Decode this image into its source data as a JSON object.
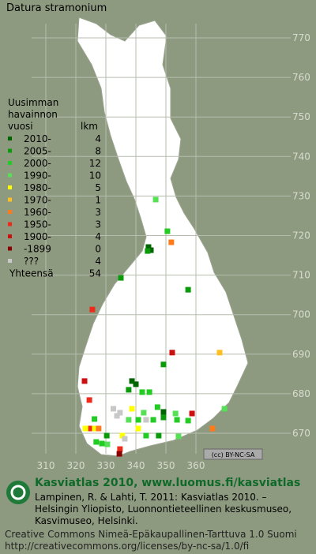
{
  "map": {
    "title": "Datura stramonium",
    "badge": "(cc) BY-NC-SA",
    "xticks": [
      310,
      320,
      330,
      340,
      350,
      360
    ],
    "yticks": [
      670,
      680,
      690,
      700,
      710,
      720,
      730,
      740,
      750,
      760,
      770
    ],
    "points": [
      {
        "x": 346.6,
        "y": 729.1,
        "period": 3
      },
      {
        "x": 350.5,
        "y": 721.1,
        "period": 2
      },
      {
        "x": 351.8,
        "y": 718.3,
        "period": 6
      },
      {
        "x": 344.2,
        "y": 717.1,
        "period": 0
      },
      {
        "x": 345,
        "y": 716.3,
        "period": 0
      },
      {
        "x": 343.9,
        "y": 716.1,
        "period": 1
      },
      {
        "x": 335,
        "y": 709.3,
        "period": 1
      },
      {
        "x": 357.4,
        "y": 706.3,
        "period": 1
      },
      {
        "x": 325.5,
        "y": 701.3,
        "period": 7
      },
      {
        "x": 352.1,
        "y": 690.4,
        "period": 8
      },
      {
        "x": 367.9,
        "y": 690.4,
        "period": 5
      },
      {
        "x": 349.2,
        "y": 687.4,
        "period": 1
      },
      {
        "x": 322.9,
        "y": 683.2,
        "period": 8
      },
      {
        "x": 338.7,
        "y": 683.2,
        "period": 0
      },
      {
        "x": 340,
        "y": 682.4,
        "period": 0
      },
      {
        "x": 337.6,
        "y": 681,
        "period": 1
      },
      {
        "x": 342.1,
        "y": 680.4,
        "period": 2
      },
      {
        "x": 344.5,
        "y": 680.4,
        "period": 2
      },
      {
        "x": 324.5,
        "y": 678.4,
        "period": 7
      },
      {
        "x": 338.7,
        "y": 676.2,
        "period": 4
      },
      {
        "x": 334.7,
        "y": 675.2,
        "period": 10
      },
      {
        "x": 333.7,
        "y": 674.4,
        "period": 10
      },
      {
        "x": 349.2,
        "y": 675.4,
        "period": 0
      },
      {
        "x": 349.2,
        "y": 674,
        "period": 1
      },
      {
        "x": 353.2,
        "y": 675,
        "period": 3
      },
      {
        "x": 358.7,
        "y": 675,
        "period": 8
      },
      {
        "x": 369.5,
        "y": 676.2,
        "period": 3
      },
      {
        "x": 340.8,
        "y": 673.4,
        "period": 2
      },
      {
        "x": 345.8,
        "y": 673.4,
        "period": 2
      },
      {
        "x": 343.4,
        "y": 673.4,
        "period": 10
      },
      {
        "x": 357.4,
        "y": 673.2,
        "period": 2
      },
      {
        "x": 353.7,
        "y": 673.4,
        "period": 2
      },
      {
        "x": 365.5,
        "y": 671.2,
        "period": 6
      },
      {
        "x": 324.7,
        "y": 671.2,
        "period": 7
      },
      {
        "x": 326.3,
        "y": 671.2,
        "period": 4
      },
      {
        "x": 327.6,
        "y": 671.2,
        "period": 6
      },
      {
        "x": 323.2,
        "y": 671.2,
        "period": 4
      },
      {
        "x": 335.5,
        "y": 669.4,
        "period": 4
      },
      {
        "x": 343.4,
        "y": 669.4,
        "period": 2
      },
      {
        "x": 347.6,
        "y": 669.4,
        "period": 1
      },
      {
        "x": 354.2,
        "y": 669.2,
        "period": 3
      },
      {
        "x": 330.3,
        "y": 669.4,
        "period": 1
      },
      {
        "x": 326.8,
        "y": 667.8,
        "period": 2
      },
      {
        "x": 328.7,
        "y": 667.4,
        "period": 2
      },
      {
        "x": 330.5,
        "y": 667.2,
        "period": 3
      },
      {
        "x": 334.7,
        "y": 666,
        "period": 7
      },
      {
        "x": 334.5,
        "y": 664.8,
        "period": 9
      },
      {
        "x": 340.8,
        "y": 671.2,
        "period": 4
      },
      {
        "x": 332.5,
        "y": 676.2,
        "period": 10
      },
      {
        "x": 337.6,
        "y": 673.4,
        "period": 3
      },
      {
        "x": 347.2,
        "y": 676.6,
        "period": 2
      },
      {
        "x": 342.6,
        "y": 675.2,
        "period": 3
      },
      {
        "x": 326.2,
        "y": 673.6,
        "period": 2
      },
      {
        "x": 336.3,
        "y": 668.6,
        "period": 10
      }
    ]
  },
  "legend": {
    "heading": [
      "Uusimman",
      "havainnon",
      "vuosi"
    ],
    "count_heading": "lkm",
    "rows": [
      {
        "label": "2010-",
        "count": 4,
        "color": "#006400"
      },
      {
        "label": "2005-",
        "count": 8,
        "color": "#0a9a0a"
      },
      {
        "label": "2000-",
        "count": 12,
        "color": "#22cc22"
      },
      {
        "label": "1990-",
        "count": 10,
        "color": "#55e055"
      },
      {
        "label": "1980-",
        "count": 5,
        "color": "#ffff00"
      },
      {
        "label": "1970-",
        "count": 1,
        "color": "#ffc020"
      },
      {
        "label": "1960-",
        "count": 3,
        "color": "#ff7a1a"
      },
      {
        "label": "1950-",
        "count": 3,
        "color": "#ee2a1a"
      },
      {
        "label": "1900-",
        "count": 4,
        "color": "#cc1010"
      },
      {
        "label": "-1899",
        "count": 0,
        "color": "#8a0000"
      },
      {
        "label": "???",
        "count": 4,
        "color": "#c8c8c8"
      }
    ],
    "total_label": "Yhteensä",
    "total": 54
  },
  "footer": {
    "atlas": "Kasviatlas 2010, www.luomus.fi/kasviatlas",
    "citation": [
      "Lampinen, R. & Lahti, T. 2011: Kasviatlas 2010. –",
      "Helsingin Yliopisto, Luonnontieteellinen keskusmuseo,",
      "Kasvimuseo, Helsinki."
    ],
    "license": [
      "Creative Commons Nimeä-Epäkaupallinen-Tarttuva 1.0 Suomi",
      "http://creativecommons.org/licenses/by-nc-sa/1.0/fi"
    ]
  }
}
